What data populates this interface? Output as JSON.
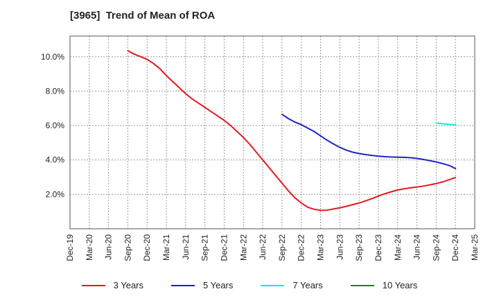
{
  "chart_data": {
    "type": "line",
    "title": "[3965]  Trend of Mean of ROA",
    "xlabel": "",
    "ylabel": "",
    "x_ticks": [
      "Dec-19",
      "Mar-20",
      "Jun-20",
      "Sep-20",
      "Dec-20",
      "Mar-21",
      "Jun-21",
      "Sep-21",
      "Dec-21",
      "Mar-22",
      "Jun-22",
      "Sep-22",
      "Dec-22",
      "Mar-23",
      "Jun-23",
      "Sep-23",
      "Dec-23",
      "Mar-24",
      "Jun-24",
      "Sep-24",
      "Dec-24",
      "Mar-25"
    ],
    "y_ticks": [
      "2.0%",
      "4.0%",
      "6.0%",
      "8.0%",
      "10.0%"
    ],
    "y_tick_values": [
      2,
      4,
      6,
      8,
      10
    ],
    "ylim": [
      0.0,
      11.2
    ],
    "grid": true,
    "legend_position": "bottom",
    "series": [
      {
        "name": "3 Years",
        "color": "#e0191e",
        "x": [
          "Sep-20",
          "Oct-20",
          "Nov-20",
          "Dec-20",
          "Jan-21",
          "Feb-21",
          "Mar-21",
          "Apr-21",
          "May-21",
          "Jun-21",
          "Jul-21",
          "Aug-21",
          "Sep-21",
          "Oct-21",
          "Nov-21",
          "Dec-21",
          "Jan-22",
          "Feb-22",
          "Mar-22",
          "Apr-22",
          "May-22",
          "Jun-22",
          "Jul-22",
          "Aug-22",
          "Sep-22",
          "Oct-22",
          "Nov-22",
          "Dec-22",
          "Jan-23",
          "Feb-23",
          "Mar-23",
          "Apr-23",
          "May-23",
          "Jun-23",
          "Jul-23",
          "Aug-23",
          "Sep-23",
          "Oct-23",
          "Nov-23",
          "Dec-23",
          "Jan-24",
          "Feb-24",
          "Mar-24",
          "Apr-24",
          "May-24",
          "Jun-24",
          "Jul-24",
          "Aug-24",
          "Sep-24",
          "Oct-24",
          "Nov-24",
          "Dec-24"
        ],
        "values": [
          10.35,
          10.15,
          10.0,
          9.85,
          9.6,
          9.3,
          8.9,
          8.55,
          8.2,
          7.85,
          7.55,
          7.3,
          7.05,
          6.8,
          6.55,
          6.3,
          6.0,
          5.65,
          5.3,
          4.9,
          4.45,
          4.0,
          3.55,
          3.1,
          2.65,
          2.2,
          1.8,
          1.5,
          1.25,
          1.13,
          1.07,
          1.08,
          1.15,
          1.22,
          1.3,
          1.4,
          1.5,
          1.62,
          1.75,
          1.9,
          2.03,
          2.15,
          2.25,
          2.32,
          2.38,
          2.42,
          2.48,
          2.55,
          2.63,
          2.72,
          2.85,
          2.98
        ]
      },
      {
        "name": "5 Years",
        "color": "#1a23c7",
        "x": [
          "Sep-22",
          "Oct-22",
          "Nov-22",
          "Dec-22",
          "Jan-23",
          "Feb-23",
          "Mar-23",
          "Apr-23",
          "May-23",
          "Jun-23",
          "Jul-23",
          "Aug-23",
          "Sep-23",
          "Oct-23",
          "Nov-23",
          "Dec-23",
          "Jan-24",
          "Feb-24",
          "Mar-24",
          "Apr-24",
          "May-24",
          "Jun-24",
          "Jul-24",
          "Aug-24",
          "Sep-24",
          "Oct-24",
          "Nov-24",
          "Dec-24"
        ],
        "values": [
          6.65,
          6.4,
          6.2,
          6.05,
          5.85,
          5.65,
          5.4,
          5.15,
          4.93,
          4.73,
          4.57,
          4.45,
          4.37,
          4.31,
          4.26,
          4.22,
          4.19,
          4.17,
          4.16,
          4.15,
          4.13,
          4.09,
          4.03,
          3.96,
          3.88,
          3.79,
          3.68,
          3.5
        ]
      },
      {
        "name": "7 Years",
        "color": "#19e6e6",
        "x": [
          "Sep-24",
          "Oct-24",
          "Nov-24",
          "Dec-24"
        ],
        "values": [
          6.15,
          6.1,
          6.07,
          6.05
        ]
      },
      {
        "name": "10 Years",
        "color": "#138a13",
        "x": [],
        "values": []
      }
    ]
  }
}
